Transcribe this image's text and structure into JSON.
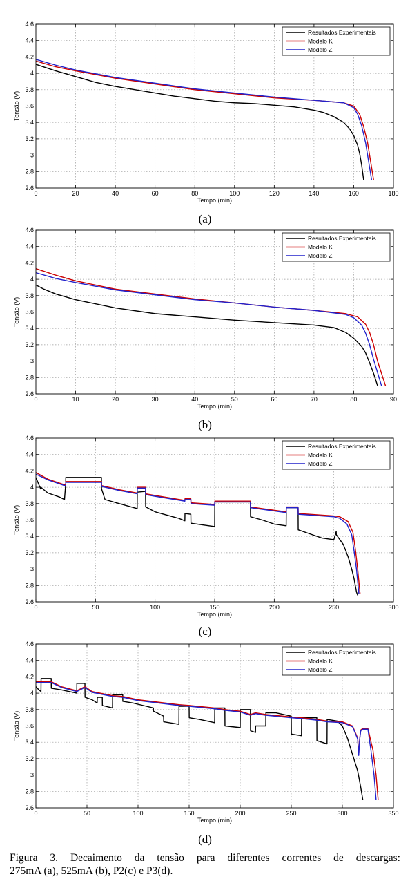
{
  "chart_data": [
    {
      "type": "line",
      "panel_label": "(a)",
      "xlabel": "Tempo (min)",
      "ylabel": "Tensão (V)",
      "xlim": [
        0,
        180
      ],
      "ylim": [
        2.6,
        4.6
      ],
      "xticks": [
        0,
        20,
        40,
        60,
        80,
        100,
        120,
        140,
        160,
        180
      ],
      "yticks": [
        2.6,
        2.8,
        3,
        3.2,
        3.4,
        3.6,
        3.8,
        4,
        4.2,
        4.4,
        4.6
      ],
      "xtick_labels": [
        "0",
        "20",
        "40",
        "60",
        "80",
        "100",
        "120",
        "140",
        "160",
        "180"
      ],
      "ytick_labels": [
        "2.6",
        "2.8",
        "3",
        "3.2",
        "3.4",
        "3.6",
        "3.8",
        "4",
        "4.2",
        "4.4",
        "4.6"
      ],
      "grid": true,
      "legend_position": "top-right",
      "series": [
        {
          "name": "Resultados Experimentais",
          "color": "#000000",
          "x": [
            0,
            5,
            10,
            20,
            30,
            40,
            50,
            60,
            70,
            80,
            90,
            100,
            110,
            120,
            130,
            140,
            145,
            150,
            155,
            158,
            160,
            162,
            163,
            164,
            165
          ],
          "y": [
            4.11,
            4.07,
            4.03,
            3.96,
            3.89,
            3.84,
            3.8,
            3.76,
            3.72,
            3.69,
            3.66,
            3.64,
            3.63,
            3.61,
            3.59,
            3.55,
            3.52,
            3.47,
            3.4,
            3.32,
            3.24,
            3.12,
            3.02,
            2.88,
            2.7
          ]
        },
        {
          "name": "Modelo K",
          "color": "#cc0000",
          "x": [
            0,
            10,
            20,
            40,
            60,
            80,
            100,
            120,
            140,
            155,
            160,
            163,
            165,
            167,
            168,
            169,
            170
          ],
          "y": [
            4.15,
            4.08,
            4.03,
            3.94,
            3.87,
            3.8,
            3.75,
            3.7,
            3.67,
            3.64,
            3.6,
            3.5,
            3.35,
            3.15,
            3.0,
            2.85,
            2.7
          ]
        },
        {
          "name": "Modelo Z",
          "color": "#2222cc",
          "x": [
            0,
            10,
            20,
            40,
            60,
            80,
            100,
            120,
            140,
            155,
            160,
            162,
            164,
            166,
            167,
            168,
            169
          ],
          "y": [
            4.17,
            4.1,
            4.04,
            3.95,
            3.88,
            3.81,
            3.76,
            3.71,
            3.67,
            3.64,
            3.58,
            3.5,
            3.36,
            3.15,
            3.0,
            2.85,
            2.7
          ]
        }
      ]
    },
    {
      "type": "line",
      "panel_label": "(b)",
      "xlabel": "Tempo (min)",
      "ylabel": "Tensão (V)",
      "xlim": [
        0,
        90
      ],
      "ylim": [
        2.6,
        4.6
      ],
      "xticks": [
        0,
        10,
        20,
        30,
        40,
        50,
        60,
        70,
        80,
        90
      ],
      "yticks": [
        2.6,
        2.8,
        3,
        3.2,
        3.4,
        3.6,
        3.8,
        4,
        4.2,
        4.4,
        4.6
      ],
      "xtick_labels": [
        "0",
        "10",
        "20",
        "30",
        "40",
        "50",
        "60",
        "70",
        "80",
        "90"
      ],
      "ytick_labels": [
        "2.6",
        "2.8",
        "3",
        "3.2",
        "3.4",
        "3.6",
        "3.8",
        "4",
        "4.2",
        "4.4",
        "4.6"
      ],
      "grid": true,
      "legend_position": "top-right",
      "series": [
        {
          "name": "Resultados Experimentais",
          "color": "#000000",
          "x": [
            0,
            2,
            5,
            10,
            20,
            30,
            40,
            50,
            60,
            70,
            75,
            78,
            80,
            82,
            83,
            84,
            85,
            86
          ],
          "y": [
            3.93,
            3.88,
            3.82,
            3.75,
            3.65,
            3.58,
            3.54,
            3.5,
            3.47,
            3.44,
            3.41,
            3.35,
            3.28,
            3.18,
            3.1,
            2.98,
            2.85,
            2.7
          ]
        },
        {
          "name": "Modelo K",
          "color": "#cc0000",
          "x": [
            0,
            5,
            10,
            20,
            30,
            40,
            50,
            60,
            70,
            78,
            81,
            83,
            84,
            85,
            86,
            87,
            88
          ],
          "y": [
            4.13,
            4.05,
            3.98,
            3.88,
            3.82,
            3.76,
            3.71,
            3.66,
            3.62,
            3.58,
            3.54,
            3.45,
            3.35,
            3.2,
            3.0,
            2.85,
            2.7
          ]
        },
        {
          "name": "Modelo Z",
          "color": "#2222cc",
          "x": [
            0,
            5,
            10,
            20,
            30,
            40,
            50,
            60,
            70,
            78,
            80,
            82,
            83,
            84,
            85,
            86,
            87
          ],
          "y": [
            4.08,
            4.01,
            3.96,
            3.87,
            3.81,
            3.75,
            3.71,
            3.66,
            3.62,
            3.57,
            3.53,
            3.44,
            3.34,
            3.2,
            3.02,
            2.86,
            2.7
          ]
        }
      ]
    },
    {
      "type": "line",
      "panel_label": "(c)",
      "xlabel": "Tempo (min)",
      "ylabel": "Tensão (V)",
      "xlim": [
        0,
        300
      ],
      "ylim": [
        2.6,
        4.6
      ],
      "xticks": [
        0,
        50,
        100,
        150,
        200,
        250,
        300
      ],
      "yticks": [
        2.6,
        2.8,
        3,
        3.2,
        3.4,
        3.6,
        3.8,
        4,
        4.2,
        4.4,
        4.6
      ],
      "xtick_labels": [
        "0",
        "50",
        "100",
        "150",
        "200",
        "250",
        "300"
      ],
      "ytick_labels": [
        "2.6",
        "2.8",
        "3",
        "3.2",
        "3.4",
        "3.6",
        "3.8",
        "4",
        "4.2",
        "4.4",
        "4.6"
      ],
      "grid": true,
      "legend_position": "top-right",
      "series": [
        {
          "name": "Resultados Experimentais",
          "color": "#000000",
          "x": [
            0,
            2,
            4,
            4.1,
            10,
            20,
            24,
            25,
            25.1,
            40,
            55,
            55.1,
            58,
            70,
            85,
            85.1,
            92,
            92.1,
            100,
            110,
            120,
            125,
            125.1,
            130,
            130.1,
            140,
            150,
            150.1,
            165,
            180,
            180.1,
            190,
            200,
            210,
            210.1,
            220,
            220.1,
            230,
            240,
            250,
            252,
            252.1,
            258,
            262,
            265,
            267,
            268,
            269,
            270
          ],
          "y": [
            4.12,
            4.05,
            3.98,
            4.0,
            3.93,
            3.88,
            3.85,
            4.04,
            4.12,
            4.12,
            4.12,
            3.98,
            3.85,
            3.8,
            3.74,
            3.94,
            3.95,
            3.76,
            3.7,
            3.66,
            3.62,
            3.59,
            3.68,
            3.67,
            3.56,
            3.54,
            3.52,
            3.82,
            3.82,
            3.82,
            3.64,
            3.6,
            3.55,
            3.53,
            3.75,
            3.75,
            3.48,
            3.43,
            3.38,
            3.36,
            3.46,
            3.42,
            3.3,
            3.15,
            3.0,
            2.88,
            2.8,
            2.72,
            2.68
          ]
        },
        {
          "name": "Modelo K",
          "color": "#cc0000",
          "x": [
            0,
            10,
            24,
            25,
            25.1,
            55,
            55.1,
            70,
            85,
            85.1,
            92,
            92.1,
            100,
            125,
            125.1,
            130,
            130.1,
            150,
            150.1,
            180,
            180.1,
            210,
            210.1,
            220,
            220.1,
            250,
            255,
            262,
            266,
            268,
            270,
            271,
            272
          ],
          "y": [
            4.18,
            4.1,
            4.03,
            4.03,
            4.07,
            4.07,
            4.02,
            3.97,
            3.93,
            4.0,
            4.0,
            3.92,
            3.9,
            3.84,
            3.86,
            3.86,
            3.81,
            3.79,
            3.83,
            3.83,
            3.76,
            3.7,
            3.76,
            3.76,
            3.68,
            3.65,
            3.64,
            3.58,
            3.45,
            3.25,
            3.0,
            2.85,
            2.7
          ]
        },
        {
          "name": "Modelo Z",
          "color": "#2222cc",
          "x": [
            0,
            10,
            24,
            25,
            25.1,
            55,
            55.1,
            70,
            85,
            85.1,
            92,
            92.1,
            100,
            125,
            125.1,
            130,
            130.1,
            150,
            150.1,
            180,
            180.1,
            210,
            210.1,
            220,
            220.1,
            250,
            255,
            261,
            265,
            267,
            269,
            270,
            271
          ],
          "y": [
            4.16,
            4.09,
            4.02,
            4.02,
            4.06,
            4.06,
            4.01,
            3.96,
            3.92,
            3.99,
            3.99,
            3.91,
            3.89,
            3.83,
            3.85,
            3.85,
            3.8,
            3.78,
            3.82,
            3.82,
            3.75,
            3.69,
            3.75,
            3.75,
            3.67,
            3.64,
            3.62,
            3.55,
            3.42,
            3.22,
            3.0,
            2.85,
            2.7
          ]
        }
      ]
    },
    {
      "type": "line",
      "panel_label": "(d)",
      "xlabel": "Tempo (min)",
      "ylabel": "Tensão (V)",
      "xlim": [
        0,
        350
      ],
      "ylim": [
        2.6,
        4.6
      ],
      "xticks": [
        0,
        50,
        100,
        150,
        200,
        250,
        300,
        350
      ],
      "yticks": [
        2.6,
        2.8,
        3,
        3.2,
        3.4,
        3.6,
        3.8,
        4,
        4.2,
        4.4,
        4.6
      ],
      "xtick_labels": [
        "0",
        "50",
        "100",
        "150",
        "200",
        "250",
        "300",
        "350"
      ],
      "ytick_labels": [
        "2.6",
        "2.8",
        "3",
        "3.2",
        "3.4",
        "3.6",
        "3.8",
        "4",
        "4.2",
        "4.4",
        "4.6"
      ],
      "grid": true,
      "legend_position": "top-right",
      "series": [
        {
          "name": "Resultados Experimentais",
          "color": "#000000",
          "x": [
            0,
            3,
            5,
            5.1,
            10,
            15,
            15.1,
            25,
            40,
            40.1,
            48,
            48.1,
            55,
            60,
            60.1,
            65,
            65.1,
            75,
            75.1,
            85,
            85.1,
            95,
            105,
            115,
            115.1,
            125,
            125.1,
            140,
            140.1,
            150,
            150.1,
            160,
            175,
            175.1,
            185,
            185.1,
            200,
            200.1,
            210,
            210.1,
            215,
            215.1,
            225,
            225.1,
            235,
            250,
            250.1,
            260,
            260.1,
            275,
            275.1,
            285,
            285.1,
            295,
            300,
            305,
            310,
            315,
            318,
            320
          ],
          "y": [
            4.08,
            4.04,
            4.02,
            4.18,
            4.18,
            4.18,
            4.06,
            4.04,
            4.0,
            4.12,
            4.12,
            3.95,
            3.92,
            3.88,
            3.95,
            3.95,
            3.85,
            3.82,
            3.98,
            3.98,
            3.9,
            3.88,
            3.85,
            3.82,
            3.78,
            3.72,
            3.65,
            3.62,
            3.84,
            3.84,
            3.7,
            3.68,
            3.64,
            3.82,
            3.82,
            3.6,
            3.58,
            3.8,
            3.8,
            3.54,
            3.52,
            3.6,
            3.6,
            3.76,
            3.76,
            3.72,
            3.5,
            3.48,
            3.7,
            3.7,
            3.42,
            3.38,
            3.68,
            3.66,
            3.6,
            3.45,
            3.25,
            3.05,
            2.85,
            2.7
          ]
        },
        {
          "name": "Modelo K",
          "color": "#cc0000",
          "x": [
            0,
            15,
            25,
            40,
            48,
            55,
            75,
            85,
            100,
            140,
            150,
            175,
            185,
            200,
            210,
            215,
            225,
            250,
            260,
            275,
            285,
            300,
            310,
            315,
            316,
            317,
            318,
            320,
            325,
            330,
            333,
            335
          ],
          "y": [
            4.14,
            4.14,
            4.08,
            4.03,
            4.08,
            4.02,
            3.97,
            3.96,
            3.92,
            3.86,
            3.85,
            3.82,
            3.8,
            3.78,
            3.74,
            3.76,
            3.74,
            3.71,
            3.7,
            3.68,
            3.66,
            3.65,
            3.6,
            3.45,
            3.25,
            3.45,
            3.55,
            3.57,
            3.57,
            3.3,
            3.0,
            2.7
          ]
        },
        {
          "name": "Modelo Z",
          "color": "#2222cc",
          "x": [
            0,
            15,
            25,
            40,
            48,
            55,
            75,
            85,
            100,
            140,
            150,
            175,
            185,
            200,
            210,
            215,
            225,
            250,
            260,
            275,
            285,
            300,
            310,
            315,
            316,
            317,
            318,
            320,
            325,
            328,
            331,
            333
          ],
          "y": [
            4.13,
            4.13,
            4.07,
            4.02,
            4.07,
            4.01,
            3.96,
            3.95,
            3.91,
            3.85,
            3.84,
            3.81,
            3.79,
            3.77,
            3.73,
            3.75,
            3.73,
            3.7,
            3.69,
            3.67,
            3.65,
            3.64,
            3.59,
            3.44,
            3.24,
            3.44,
            3.54,
            3.56,
            3.56,
            3.3,
            3.0,
            2.7
          ]
        }
      ]
    }
  ],
  "caption": {
    "line1": "Figura 3. Decaimento da tensão para diferentes correntes de descargas:",
    "line2": "275mA (a), 525mA (b), P2(c) e P3(d)."
  }
}
